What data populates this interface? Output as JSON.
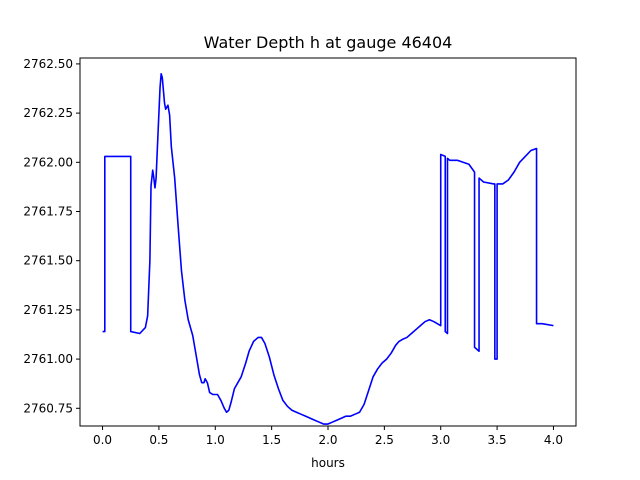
{
  "chart_data": {
    "type": "line",
    "title": "Water Depth h at gauge 46404",
    "xlabel": "hours",
    "ylabel": "",
    "xlim": [
      -0.2,
      4.2
    ],
    "ylim": [
      2760.66,
      2762.53
    ],
    "xticks": [
      0.0,
      0.5,
      1.0,
      1.5,
      2.0,
      2.5,
      3.0,
      3.5,
      4.0
    ],
    "xtick_labels": [
      "0.0",
      "0.5",
      "1.0",
      "1.5",
      "2.0",
      "2.5",
      "3.0",
      "3.5",
      "4.0"
    ],
    "yticks": [
      2760.75,
      2761.0,
      2761.25,
      2761.5,
      2761.75,
      2762.0,
      2762.25,
      2762.5
    ],
    "ytick_labels": [
      "2760.75",
      "2761.00",
      "2761.25",
      "2761.50",
      "2761.75",
      "2762.00",
      "2762.25",
      "2762.50"
    ],
    "grid": false,
    "legend": "none",
    "series": [
      {
        "color": "#0000ff",
        "points": [
          [
            0.0,
            2761.14
          ],
          [
            0.02,
            2761.14
          ],
          [
            0.02,
            2762.03
          ],
          [
            0.25,
            2762.03
          ],
          [
            0.25,
            2761.14
          ],
          [
            0.33,
            2761.13
          ],
          [
            0.38,
            2761.16
          ],
          [
            0.4,
            2761.22
          ],
          [
            0.42,
            2761.5
          ],
          [
            0.43,
            2761.88
          ],
          [
            0.445,
            2761.96
          ],
          [
            0.455,
            2761.92
          ],
          [
            0.465,
            2761.87
          ],
          [
            0.475,
            2761.92
          ],
          [
            0.49,
            2762.12
          ],
          [
            0.51,
            2762.38
          ],
          [
            0.52,
            2762.45
          ],
          [
            0.53,
            2762.43
          ],
          [
            0.55,
            2762.3
          ],
          [
            0.56,
            2762.27
          ],
          [
            0.57,
            2762.28
          ],
          [
            0.58,
            2762.29
          ],
          [
            0.595,
            2762.24
          ],
          [
            0.61,
            2762.08
          ],
          [
            0.64,
            2761.92
          ],
          [
            0.67,
            2761.68
          ],
          [
            0.7,
            2761.45
          ],
          [
            0.73,
            2761.3
          ],
          [
            0.76,
            2761.2
          ],
          [
            0.8,
            2761.12
          ],
          [
            0.83,
            2761.02
          ],
          [
            0.86,
            2760.92
          ],
          [
            0.88,
            2760.88
          ],
          [
            0.9,
            2760.88
          ],
          [
            0.91,
            2760.9
          ],
          [
            0.93,
            2760.88
          ],
          [
            0.95,
            2760.83
          ],
          [
            0.98,
            2760.82
          ],
          [
            1.02,
            2760.82
          ],
          [
            1.05,
            2760.79
          ],
          [
            1.08,
            2760.75
          ],
          [
            1.1,
            2760.73
          ],
          [
            1.12,
            2760.74
          ],
          [
            1.14,
            2760.78
          ],
          [
            1.17,
            2760.85
          ],
          [
            1.2,
            2760.88
          ],
          [
            1.23,
            2760.91
          ],
          [
            1.27,
            2760.98
          ],
          [
            1.3,
            2761.04
          ],
          [
            1.34,
            2761.09
          ],
          [
            1.38,
            2761.11
          ],
          [
            1.41,
            2761.11
          ],
          [
            1.44,
            2761.08
          ],
          [
            1.48,
            2761.01
          ],
          [
            1.52,
            2760.92
          ],
          [
            1.56,
            2760.85
          ],
          [
            1.6,
            2760.79
          ],
          [
            1.64,
            2760.76
          ],
          [
            1.68,
            2760.74
          ],
          [
            1.72,
            2760.73
          ],
          [
            1.76,
            2760.72
          ],
          [
            1.8,
            2760.71
          ],
          [
            1.84,
            2760.7
          ],
          [
            1.88,
            2760.69
          ],
          [
            1.92,
            2760.68
          ],
          [
            1.96,
            2760.67
          ],
          [
            2.0,
            2760.67
          ],
          [
            2.04,
            2760.68
          ],
          [
            2.08,
            2760.69
          ],
          [
            2.12,
            2760.7
          ],
          [
            2.16,
            2760.71
          ],
          [
            2.2,
            2760.71
          ],
          [
            2.24,
            2760.72
          ],
          [
            2.28,
            2760.73
          ],
          [
            2.32,
            2760.77
          ],
          [
            2.36,
            2760.84
          ],
          [
            2.4,
            2760.91
          ],
          [
            2.44,
            2760.95
          ],
          [
            2.48,
            2760.98
          ],
          [
            2.52,
            2761.0
          ],
          [
            2.56,
            2761.03
          ],
          [
            2.6,
            2761.07
          ],
          [
            2.63,
            2761.09
          ],
          [
            2.66,
            2761.1
          ],
          [
            2.7,
            2761.11
          ],
          [
            2.74,
            2761.13
          ],
          [
            2.78,
            2761.15
          ],
          [
            2.82,
            2761.17
          ],
          [
            2.86,
            2761.19
          ],
          [
            2.9,
            2761.2
          ],
          [
            2.94,
            2761.19
          ],
          [
            2.97,
            2761.18
          ],
          [
            3.0,
            2761.17
          ],
          [
            3.0,
            2762.04
          ],
          [
            3.04,
            2762.03
          ],
          [
            3.04,
            2761.14
          ],
          [
            3.06,
            2761.13
          ],
          [
            3.06,
            2762.02
          ],
          [
            3.08,
            2762.01
          ],
          [
            3.15,
            2762.01
          ],
          [
            3.25,
            2761.99
          ],
          [
            3.3,
            2761.95
          ],
          [
            3.3,
            2761.06
          ],
          [
            3.34,
            2761.04
          ],
          [
            3.34,
            2761.92
          ],
          [
            3.38,
            2761.9
          ],
          [
            3.47,
            2761.89
          ],
          [
            3.48,
            2761.89
          ],
          [
            3.48,
            2761.0
          ],
          [
            3.5,
            2761.0
          ],
          [
            3.5,
            2761.89
          ],
          [
            3.55,
            2761.89
          ],
          [
            3.6,
            2761.91
          ],
          [
            3.65,
            2761.95
          ],
          [
            3.7,
            2762.0
          ],
          [
            3.75,
            2762.03
          ],
          [
            3.8,
            2762.06
          ],
          [
            3.85,
            2762.07
          ],
          [
            3.85,
            2761.18
          ],
          [
            3.9,
            2761.18
          ],
          [
            4.0,
            2761.17
          ]
        ]
      }
    ]
  }
}
